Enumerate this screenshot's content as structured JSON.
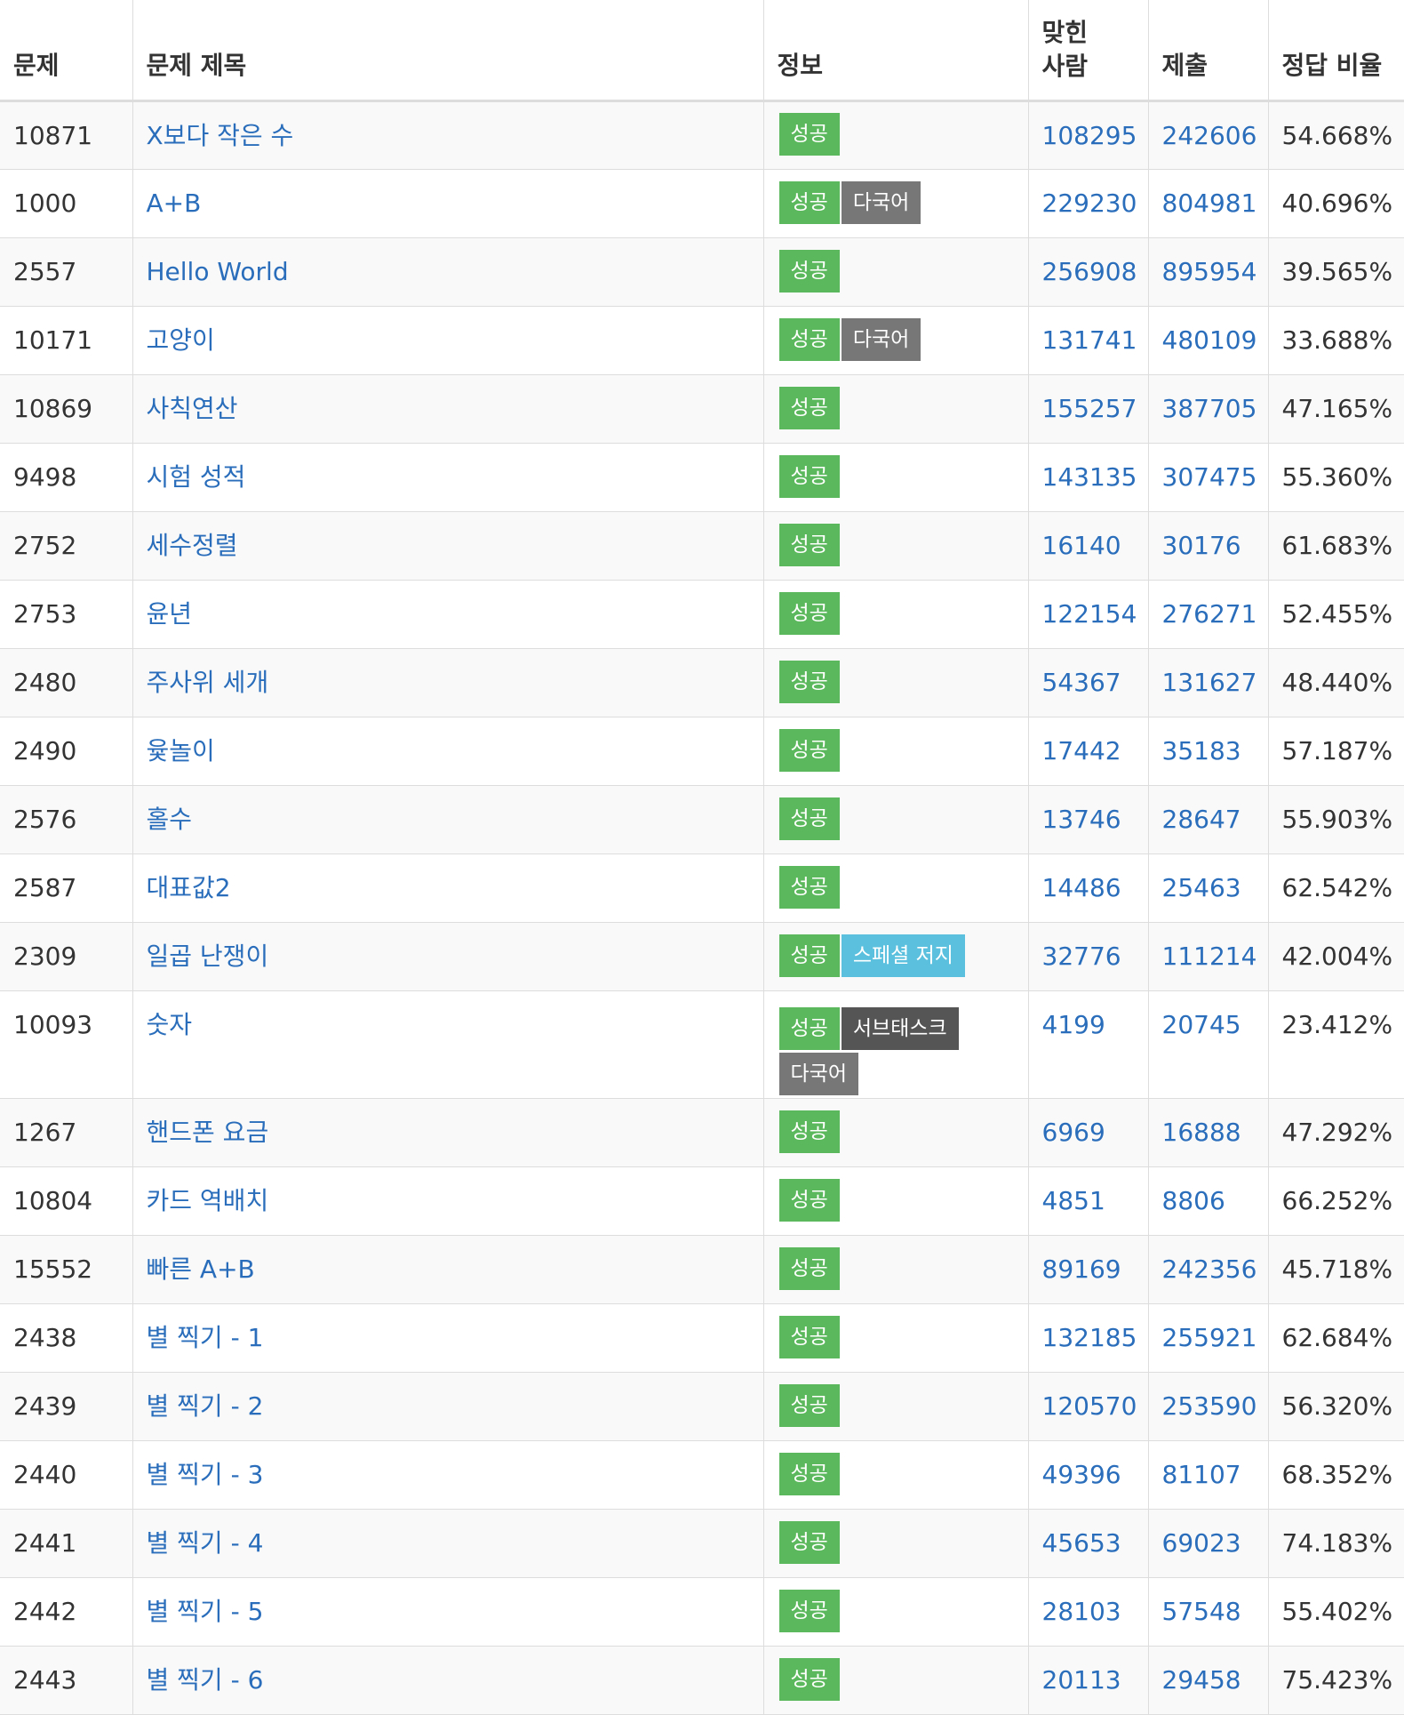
{
  "header": {
    "id": "문제",
    "title": "문제 제목",
    "info": "정보",
    "accepted": "맞힌 사람",
    "submissions": "제출",
    "ratio": "정답 비율"
  },
  "rows": [
    {
      "id": "10871",
      "title": "X보다 작은 수",
      "labels": [
        "성공"
      ],
      "accepted": "108295",
      "submissions": "242606",
      "ratio": "54.668%"
    },
    {
      "id": "1000",
      "title": "A+B",
      "labels": [
        "성공",
        "다국어"
      ],
      "accepted": "229230",
      "submissions": "804981",
      "ratio": "40.696%"
    },
    {
      "id": "2557",
      "title": "Hello World",
      "labels": [
        "성공"
      ],
      "accepted": "256908",
      "submissions": "895954",
      "ratio": "39.565%"
    },
    {
      "id": "10171",
      "title": "고양이",
      "labels": [
        "성공",
        "다국어"
      ],
      "accepted": "131741",
      "submissions": "480109",
      "ratio": "33.688%"
    },
    {
      "id": "10869",
      "title": "사칙연산",
      "labels": [
        "성공"
      ],
      "accepted": "155257",
      "submissions": "387705",
      "ratio": "47.165%"
    },
    {
      "id": "9498",
      "title": "시험 성적",
      "labels": [
        "성공"
      ],
      "accepted": "143135",
      "submissions": "307475",
      "ratio": "55.360%"
    },
    {
      "id": "2752",
      "title": "세수정렬",
      "labels": [
        "성공"
      ],
      "accepted": "16140",
      "submissions": "30176",
      "ratio": "61.683%"
    },
    {
      "id": "2753",
      "title": "윤년",
      "labels": [
        "성공"
      ],
      "accepted": "122154",
      "submissions": "276271",
      "ratio": "52.455%"
    },
    {
      "id": "2480",
      "title": "주사위 세개",
      "labels": [
        "성공"
      ],
      "accepted": "54367",
      "submissions": "131627",
      "ratio": "48.440%"
    },
    {
      "id": "2490",
      "title": "윷놀이",
      "labels": [
        "성공"
      ],
      "accepted": "17442",
      "submissions": "35183",
      "ratio": "57.187%"
    },
    {
      "id": "2576",
      "title": "홀수",
      "labels": [
        "성공"
      ],
      "accepted": "13746",
      "submissions": "28647",
      "ratio": "55.903%"
    },
    {
      "id": "2587",
      "title": "대표값2",
      "labels": [
        "성공"
      ],
      "accepted": "14486",
      "submissions": "25463",
      "ratio": "62.542%"
    },
    {
      "id": "2309",
      "title": "일곱 난쟁이",
      "labels": [
        "성공",
        "스페셜 저지"
      ],
      "accepted": "32776",
      "submissions": "111214",
      "ratio": "42.004%"
    },
    {
      "id": "10093",
      "title": "숫자",
      "labels": [
        "성공",
        "서브태스크",
        "다국어"
      ],
      "accepted": "4199",
      "submissions": "20745",
      "ratio": "23.412%"
    },
    {
      "id": "1267",
      "title": "핸드폰 요금",
      "labels": [
        "성공"
      ],
      "accepted": "6969",
      "submissions": "16888",
      "ratio": "47.292%"
    },
    {
      "id": "10804",
      "title": "카드 역배치",
      "labels": [
        "성공"
      ],
      "accepted": "4851",
      "submissions": "8806",
      "ratio": "66.252%"
    },
    {
      "id": "15552",
      "title": "빠른 A+B",
      "labels": [
        "성공"
      ],
      "accepted": "89169",
      "submissions": "242356",
      "ratio": "45.718%"
    },
    {
      "id": "2438",
      "title": "별 찍기 - 1",
      "labels": [
        "성공"
      ],
      "accepted": "132185",
      "submissions": "255921",
      "ratio": "62.684%"
    },
    {
      "id": "2439",
      "title": "별 찍기 - 2",
      "labels": [
        "성공"
      ],
      "accepted": "120570",
      "submissions": "253590",
      "ratio": "56.320%"
    },
    {
      "id": "2440",
      "title": "별 찍기 - 3",
      "labels": [
        "성공"
      ],
      "accepted": "49396",
      "submissions": "81107",
      "ratio": "68.352%"
    },
    {
      "id": "2441",
      "title": "별 찍기 - 4",
      "labels": [
        "성공"
      ],
      "accepted": "45653",
      "submissions": "69023",
      "ratio": "74.183%"
    },
    {
      "id": "2442",
      "title": "별 찍기 - 5",
      "labels": [
        "성공"
      ],
      "accepted": "28103",
      "submissions": "57548",
      "ratio": "55.402%"
    },
    {
      "id": "2443",
      "title": "별 찍기 - 6",
      "labels": [
        "성공"
      ],
      "accepted": "20113",
      "submissions": "29458",
      "ratio": "75.423%"
    }
  ],
  "label_colors": {
    "성공": "#5cb85c",
    "다국어": "#777777",
    "스페셜 저지": "#5bc0de",
    "서브태스크": "#555555"
  }
}
